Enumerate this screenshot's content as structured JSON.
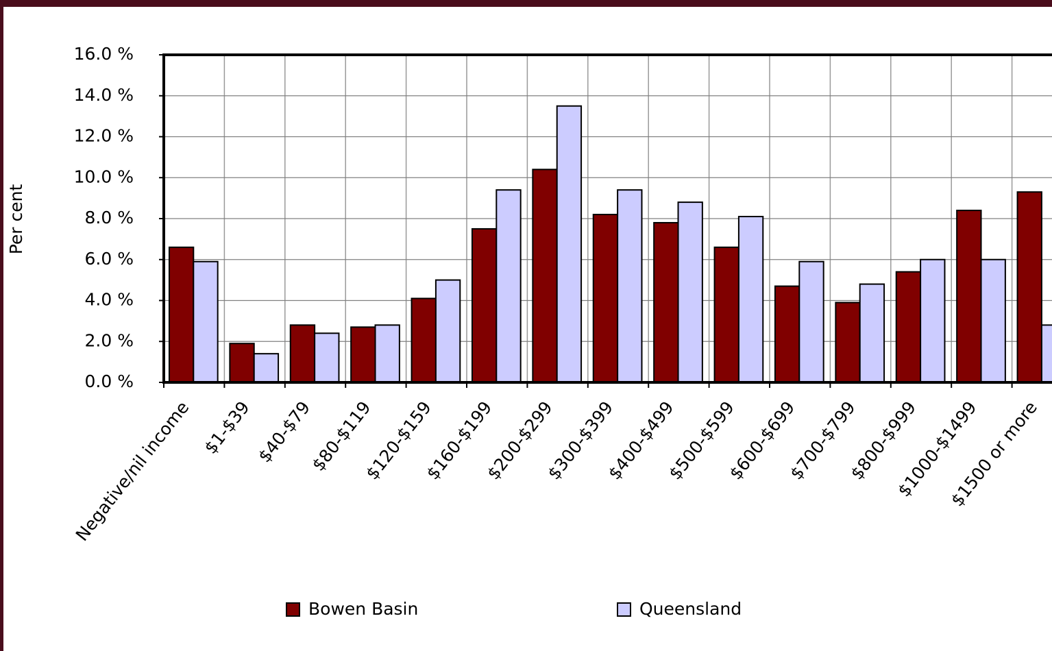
{
  "chart_data": {
    "type": "bar",
    "y_label": "Per cent",
    "categories": [
      "Negative/nil income",
      "$1-$39",
      "$40-$79",
      "$80-$119",
      "$120-$159",
      "$160-$199",
      "$200-$299",
      "$300-$399",
      "$400-$499",
      "$500-$599",
      "$600-$699",
      "$700-$799",
      "$800-$999",
      "$1000-$1499",
      "$1500 or more"
    ],
    "series": [
      {
        "name": "Bowen Basin",
        "color": "#800000",
        "values": [
          6.6,
          1.9,
          2.8,
          2.7,
          4.1,
          7.5,
          10.4,
          8.2,
          7.8,
          6.6,
          4.7,
          3.9,
          5.4,
          8.4,
          9.3
        ]
      },
      {
        "name": "Queensland",
        "color": "#ccccff",
        "values": [
          5.9,
          1.4,
          2.4,
          2.8,
          5.0,
          9.4,
          13.5,
          9.4,
          8.8,
          8.1,
          5.9,
          4.8,
          6.0,
          6.0,
          2.8
        ]
      }
    ],
    "ylim": [
      0,
      16
    ],
    "yticks": [
      {
        "value": 0,
        "label": "0.0 %"
      },
      {
        "value": 2,
        "label": "2.0 %"
      },
      {
        "value": 4,
        "label": "4.0 %"
      },
      {
        "value": 6,
        "label": "6.0 %"
      },
      {
        "value": 8,
        "label": "8.0 %"
      },
      {
        "value": 10,
        "label": "10.0 %"
      },
      {
        "value": 12,
        "label": "12.0 %"
      },
      {
        "value": 14,
        "label": "14.0 %"
      },
      {
        "value": 16,
        "label": "16.0 %"
      }
    ],
    "grid": true
  }
}
